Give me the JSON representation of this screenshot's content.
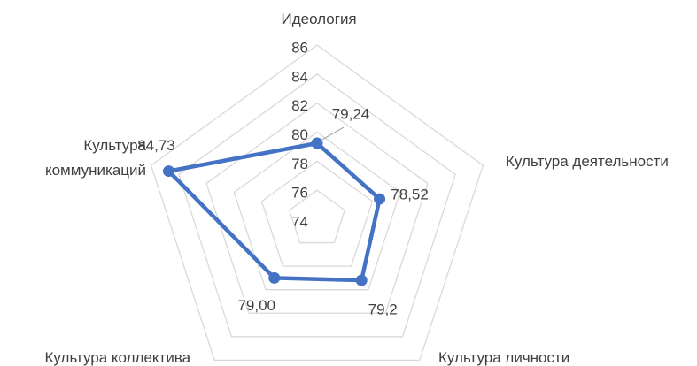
{
  "chart_data": {
    "type": "radar",
    "categories": [
      "Идеология",
      "Культура деятельности",
      "Культура личности",
      "Культура коллектива",
      "Культура коммуникаций"
    ],
    "values": [
      79.24,
      78.52,
      79.2,
      79.0,
      84.73
    ],
    "value_labels": [
      "79,24",
      "78,52",
      "79,2",
      "79,00",
      "84,73"
    ],
    "color": "#4472c4",
    "ylim": [
      74,
      86
    ],
    "yticks": [
      74,
      76,
      78,
      80,
      82,
      84,
      86
    ],
    "grid": true
  }
}
